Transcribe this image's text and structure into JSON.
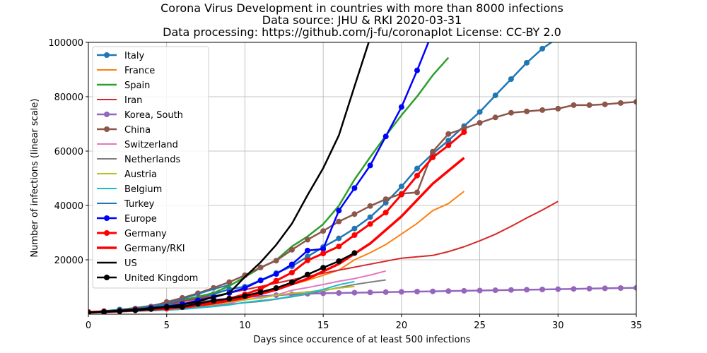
{
  "chart_data": {
    "type": "line",
    "title_lines": [
      "Corona Virus Development in countries with more than 8000 infections",
      "Data source: JHU & RKI 2020-03-31",
      "Data processing: https://github.com/j-fu/coronaplot  License: CC-BY 2.0"
    ],
    "xlabel": "Days since occurence of at least 500 infections",
    "ylabel": "Number of infections (linear scale)",
    "xlim": [
      0,
      35
    ],
    "ylim": [
      0,
      100000
    ],
    "xticks": [
      "0",
      "5",
      "10",
      "15",
      "20",
      "25",
      "30",
      "35"
    ],
    "yticks": [
      "20000",
      "40000",
      "60000",
      "80000",
      "100000"
    ],
    "grid": true,
    "legend_position": "upper-left",
    "series": [
      {
        "name": "Italy",
        "color": "#1f77b4",
        "marker": true,
        "width": 2.5,
        "x": [
          0,
          1,
          2,
          3,
          4,
          5,
          6,
          7,
          8,
          9,
          10,
          11,
          12,
          13,
          14,
          15,
          16,
          17,
          18,
          19,
          20,
          21,
          22,
          23,
          24,
          25,
          26,
          27,
          28,
          29,
          30,
          31,
          32
        ],
        "y": [
          650,
          1130,
          1700,
          2040,
          2500,
          3100,
          4600,
          5900,
          7400,
          9200,
          10100,
          12500,
          15100,
          17600,
          21200,
          24700,
          27900,
          31500,
          35700,
          41000,
          47000,
          53600,
          59100,
          63900,
          69200,
          74400,
          80500,
          86500,
          92500,
          97700,
          101700,
          105800,
          110600
        ]
      },
      {
        "name": "France",
        "color": "#ff7f0e",
        "marker": false,
        "width": 2,
        "x": [
          0,
          1,
          2,
          3,
          4,
          5,
          6,
          7,
          8,
          9,
          10,
          11,
          12,
          13,
          14,
          15,
          16,
          17,
          18,
          19,
          20,
          21,
          22,
          23,
          24
        ],
        "y": [
          700,
          1000,
          1200,
          1600,
          1800,
          2300,
          2900,
          3700,
          4500,
          5400,
          6600,
          7700,
          9100,
          10900,
          12500,
          14300,
          16200,
          20000,
          22600,
          25600,
          29500,
          33400,
          38100,
          40700,
          45200
        ]
      },
      {
        "name": "Spain",
        "color": "#2ca02c",
        "marker": false,
        "width": 2.5,
        "x": [
          0,
          1,
          2,
          3,
          4,
          5,
          6,
          7,
          8,
          9,
          10,
          11,
          12,
          13,
          14,
          15,
          16,
          17,
          18,
          19,
          20,
          21,
          22,
          23
        ],
        "y": [
          600,
          1000,
          1600,
          2300,
          3100,
          4200,
          5200,
          6400,
          7800,
          10400,
          13700,
          17100,
          19900,
          24900,
          28600,
          33100,
          39900,
          49500,
          57800,
          65700,
          73200,
          80100,
          87900,
          94400
        ]
      },
      {
        "name": "Iran",
        "color": "#d62728",
        "marker": false,
        "width": 2,
        "x": [
          0,
          2,
          4,
          6,
          8,
          10,
          12,
          14,
          16,
          18,
          20,
          22,
          23,
          24,
          25,
          26,
          27,
          28,
          29,
          30
        ],
        "y": [
          600,
          1500,
          2900,
          4700,
          6600,
          9000,
          11400,
          13900,
          16200,
          18400,
          20600,
          21600,
          23000,
          24800,
          27000,
          29400,
          32300,
          35400,
          38300,
          41500
        ]
      },
      {
        "name": "Korea, South",
        "color": "#9467bd",
        "marker": true,
        "width": 2.5,
        "x": [
          0,
          1,
          2,
          3,
          4,
          5,
          6,
          7,
          8,
          9,
          10,
          11,
          12,
          13,
          14,
          15,
          16,
          17,
          18,
          19,
          20,
          21,
          22,
          23,
          24,
          25,
          26,
          27,
          28,
          29,
          30,
          31,
          32,
          33,
          34,
          35
        ],
        "y": [
          600,
          900,
          1300,
          1800,
          2300,
          2900,
          3500,
          4300,
          5200,
          5800,
          6300,
          6600,
          7000,
          7300,
          7500,
          7700,
          7800,
          7900,
          8000,
          8100,
          8200,
          8300,
          8400,
          8500,
          8600,
          8700,
          8800,
          8900,
          9000,
          9100,
          9200,
          9300,
          9400,
          9500,
          9600,
          9700
        ]
      },
      {
        "name": "China",
        "color": "#8c564b",
        "marker": true,
        "width": 2.5,
        "x": [
          0,
          1,
          2,
          3,
          4,
          5,
          6,
          7,
          8,
          9,
          10,
          11,
          12,
          13,
          14,
          15,
          16,
          17,
          18,
          19,
          20,
          21,
          22,
          23,
          24,
          25,
          26,
          27,
          28,
          29,
          30,
          31,
          32,
          33,
          34,
          35
        ],
        "y": [
          600,
          900,
          1300,
          2000,
          2800,
          4500,
          6000,
          7700,
          9700,
          11800,
          14300,
          17200,
          19700,
          23700,
          27400,
          30600,
          34100,
          36800,
          39800,
          42300,
          44300,
          44800,
          59800,
          66300,
          68300,
          70400,
          72400,
          74100,
          74600,
          75100,
          75600,
          76900,
          76900,
          77200,
          77700,
          78100
        ]
      },
      {
        "name": "Switzerland",
        "color": "#e377c2",
        "marker": false,
        "width": 2,
        "x": [
          0,
          1,
          2,
          3,
          4,
          5,
          6,
          7,
          8,
          9,
          10,
          11,
          12,
          13,
          14,
          15,
          16,
          17,
          18,
          19
        ],
        "y": [
          600,
          650,
          850,
          1100,
          1400,
          2200,
          2200,
          2700,
          3100,
          4000,
          5300,
          6100,
          7000,
          8800,
          9800,
          10900,
          12100,
          13100,
          14400,
          15900
        ]
      },
      {
        "name": "Netherlands",
        "color": "#7f7f7f",
        "marker": false,
        "width": 2,
        "x": [
          0,
          1,
          2,
          3,
          4,
          5,
          6,
          7,
          8,
          9,
          10,
          11,
          12,
          13,
          14,
          15,
          16,
          17,
          18,
          19
        ],
        "y": [
          600,
          800,
          1000,
          1100,
          1400,
          1700,
          2000,
          2500,
          3000,
          3600,
          4200,
          4700,
          5500,
          6400,
          7400,
          8600,
          9800,
          10900,
          11800,
          12600
        ]
      },
      {
        "name": "Austria",
        "color": "#bcbd22",
        "marker": false,
        "width": 2,
        "x": [
          0,
          1,
          2,
          3,
          4,
          5,
          6,
          7,
          8,
          9,
          10,
          11,
          12,
          13,
          14,
          15,
          16,
          17
        ],
        "y": [
          650,
          800,
          1000,
          1300,
          1600,
          2000,
          2400,
          3000,
          3600,
          4500,
          5300,
          5900,
          7000,
          7700,
          8200,
          8800,
          9600,
          10200
        ]
      },
      {
        "name": "Belgium",
        "color": "#17becf",
        "marker": false,
        "width": 2,
        "x": [
          0,
          1,
          2,
          3,
          4,
          5,
          6,
          7,
          8,
          9,
          10,
          11,
          12,
          13,
          14,
          15,
          16,
          17
        ],
        "y": [
          600,
          700,
          900,
          1100,
          1300,
          1500,
          1800,
          2300,
          2800,
          3400,
          4300,
          5000,
          5600,
          6600,
          7700,
          9100,
          10800,
          12000
        ]
      },
      {
        "name": "Turkey",
        "color": "#1f77b4",
        "marker": false,
        "width": 2,
        "x": [
          0,
          1,
          2,
          3,
          4,
          5,
          6,
          7,
          8,
          9
        ],
        "y": [
          700,
          1200,
          1500,
          2000,
          2800,
          3700,
          5600,
          7400,
          9200,
          10800
        ]
      },
      {
        "name": "Europe",
        "color": "#0000ff",
        "marker": true,
        "width": 2.5,
        "x": [
          0,
          1,
          2,
          3,
          4,
          5,
          6,
          7,
          8,
          9,
          10,
          11,
          12,
          13,
          14,
          15,
          16,
          17,
          18,
          19,
          20,
          21,
          22
        ],
        "y": [
          600,
          900,
          1300,
          1700,
          2300,
          2800,
          3700,
          5100,
          6200,
          7800,
          9600,
          12400,
          14800,
          18300,
          23400,
          24000,
          38100,
          46400,
          54700,
          65400,
          76200,
          89700,
          104000
        ]
      },
      {
        "name": "Germany",
        "color": "#ff0000",
        "marker": true,
        "width": 3,
        "x": [
          0,
          1,
          2,
          3,
          4,
          5,
          6,
          7,
          8,
          9,
          10,
          11,
          12,
          13,
          14,
          15,
          16,
          17,
          18,
          19,
          20,
          21,
          22,
          23,
          24
        ],
        "y": [
          800,
          1000,
          1200,
          1500,
          1900,
          2000,
          2600,
          3700,
          4600,
          5800,
          7300,
          9300,
          12300,
          15300,
          19800,
          22300,
          24900,
          29100,
          33200,
          37400,
          44000,
          51000,
          57700,
          62100,
          67000
        ]
      },
      {
        "name": "Germany/RKI",
        "color": "#ff0000",
        "marker": false,
        "width": 3.5,
        "x": [
          0,
          2,
          4,
          6,
          8,
          10,
          12,
          14,
          16,
          18,
          20,
          22,
          24
        ],
        "y": [
          700,
          1100,
          1700,
          2500,
          4000,
          6000,
          9000,
          13000,
          18500,
          26000,
          36000,
          48000,
          57500
        ]
      },
      {
        "name": "US",
        "color": "#000000",
        "marker": false,
        "width": 2.5,
        "x": [
          0,
          1,
          2,
          3,
          4,
          5,
          6,
          7,
          8,
          9,
          10,
          11,
          12,
          13,
          14,
          15,
          16,
          17,
          18,
          19
        ],
        "y": [
          600,
          1000,
          1300,
          1700,
          2200,
          2700,
          3500,
          4600,
          6400,
          7800,
          13700,
          19100,
          25500,
          33300,
          43800,
          53700,
          65800,
          83800,
          101700,
          121500
        ]
      },
      {
        "name": "United Kingdom",
        "color": "#000000",
        "marker": true,
        "width": 2.5,
        "x": [
          0,
          1,
          2,
          3,
          4,
          5,
          6,
          7,
          8,
          9,
          10,
          11,
          12,
          13,
          14,
          15,
          16,
          17
        ],
        "y": [
          600,
          800,
          1100,
          1400,
          1900,
          2600,
          2700,
          3900,
          5000,
          5700,
          6700,
          8100,
          9600,
          11700,
          14600,
          17100,
          19500,
          22500
        ]
      }
    ]
  }
}
